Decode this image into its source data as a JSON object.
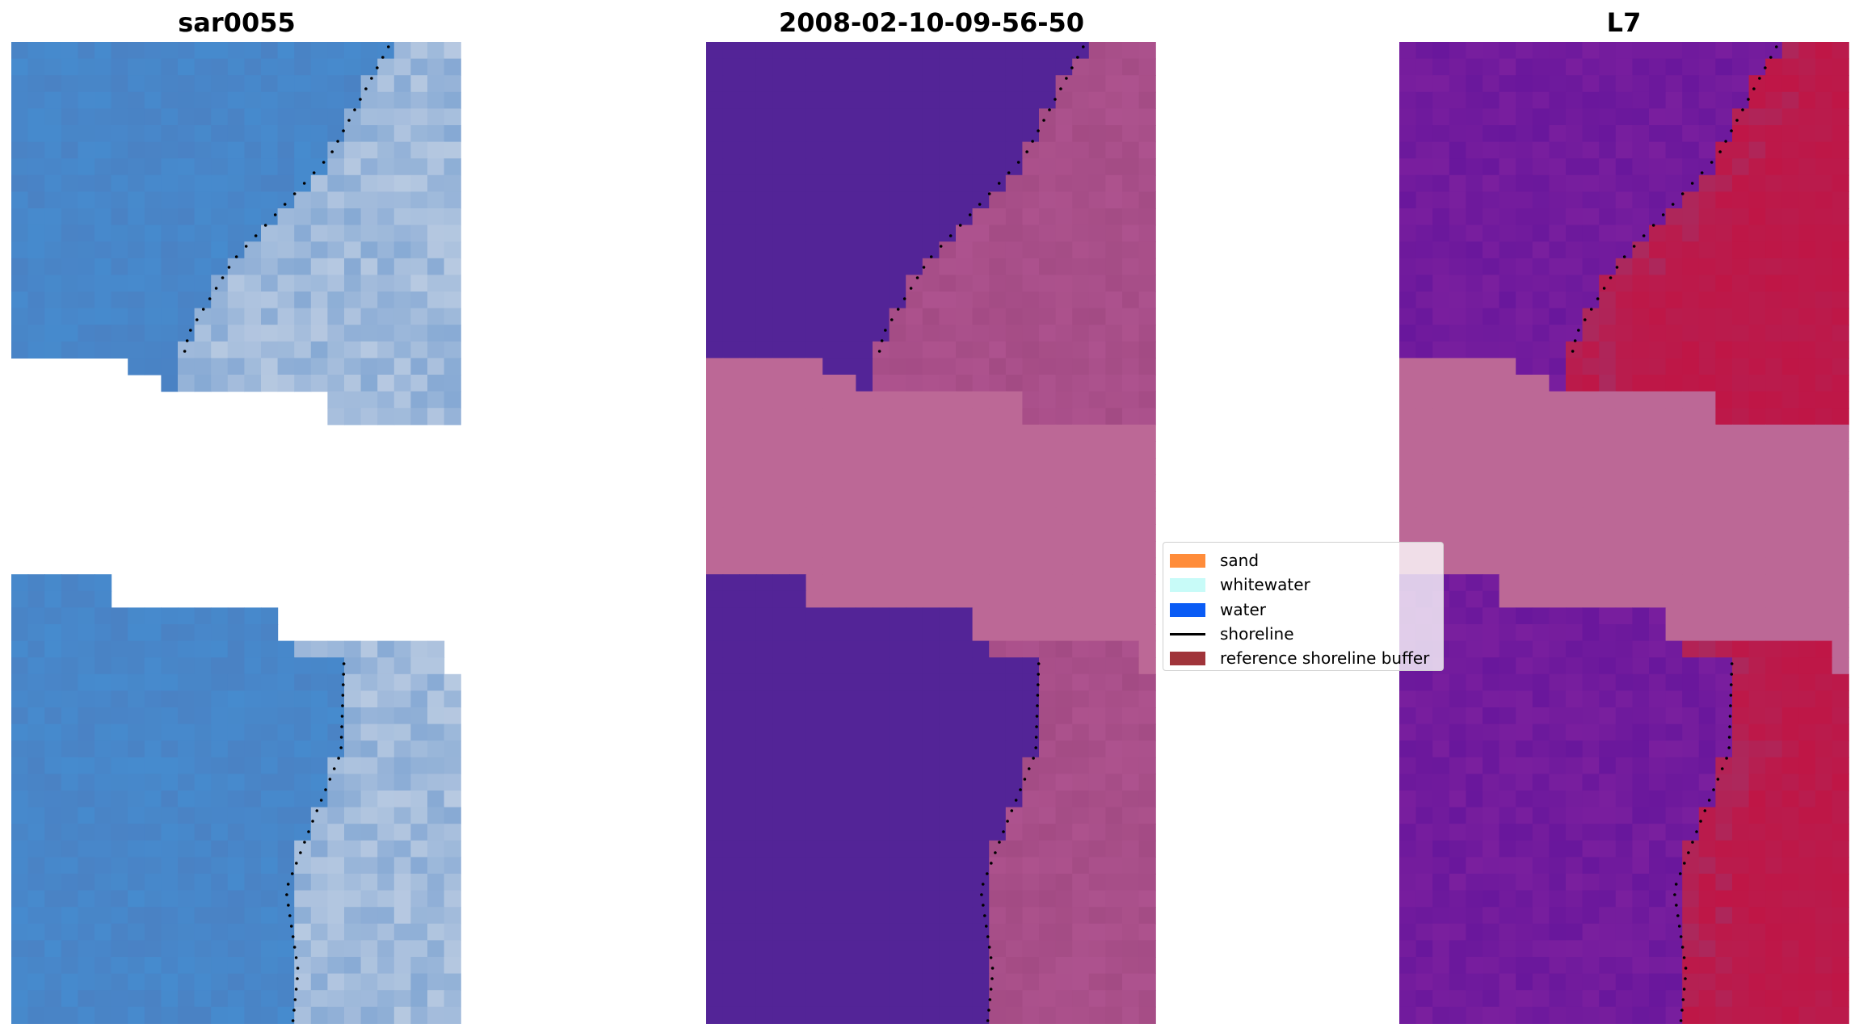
{
  "titles": {
    "left": "sar0055",
    "center": "2008-02-10-09-56-50",
    "right": "L7"
  },
  "legend": {
    "entries": [
      {
        "label": "sand",
        "kind": "patch",
        "color": "#ff8c3a"
      },
      {
        "label": "whitewater",
        "kind": "patch",
        "color": "#c8fbf8"
      },
      {
        "label": "water",
        "kind": "patch",
        "color": "#0a5cf5"
      },
      {
        "label": "shoreline",
        "kind": "line",
        "color": "#000000"
      },
      {
        "label": "reference shoreline buffer",
        "kind": "patch",
        "color": "#a0343a"
      }
    ]
  },
  "colors": {
    "rgb_water": "#4a82c4",
    "rgb_beach": "#b7c9e1",
    "class_water": "#532497",
    "class_land": "#a34b84",
    "class_nodata": "#bc6896",
    "index_water": "#7a1f9e",
    "index_land": "#bf1646",
    "index_nodata": "#bc6896",
    "shoreline": "#000000"
  }
}
